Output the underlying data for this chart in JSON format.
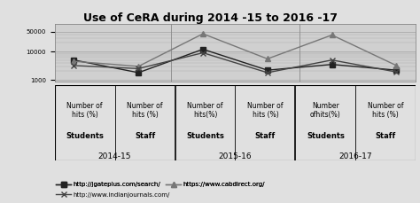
{
  "title": "Use of CeRA during 2014 -15 to 2016 -17",
  "bg_color": "#e8e8e8",
  "plot_bg": "#d8d8d8",
  "series": [
    {
      "label": "http://jgateplus.com/search/",
      "marker": "s",
      "color": "#222222",
      "linestyle": "-",
      "x": [
        0,
        1,
        2,
        3,
        4,
        5
      ],
      "y": [
        5000,
        1800,
        12000,
        2200,
        3500,
        2200
      ]
    },
    {
      "label": "https://www.cabdirect.org/",
      "marker": "^",
      "color": "#777777",
      "linestyle": "-",
      "x": [
        0,
        1,
        2,
        3,
        4,
        5
      ],
      "y": [
        4500,
        3000,
        42000,
        5500,
        38000,
        3200
      ]
    },
    {
      "label": "http://www.indianjournals.com/",
      "marker": "x",
      "color": "#444444",
      "linestyle": "-",
      "x": [
        0,
        1,
        2,
        3,
        4,
        5
      ],
      "y": [
        3200,
        2500,
        9000,
        1800,
        5000,
        1900
      ]
    }
  ],
  "col_labels_top": [
    "Number of\nhits (%)",
    "Number of\nhits (%)",
    "Number of\nhits(%)",
    "Number of\nhits (%)",
    "Number\nofhits(%)",
    "Number of\nhits (%)"
  ],
  "col_labels_mid": [
    "Students",
    "Staff",
    "Students",
    "Staff",
    "Students",
    "Staff"
  ],
  "year_labels": [
    "2014-15",
    "2015-16",
    "2016-17"
  ],
  "yticks": [
    1000,
    10000,
    50000
  ],
  "yticklabels": [
    "1000",
    "10000",
    "50000"
  ]
}
